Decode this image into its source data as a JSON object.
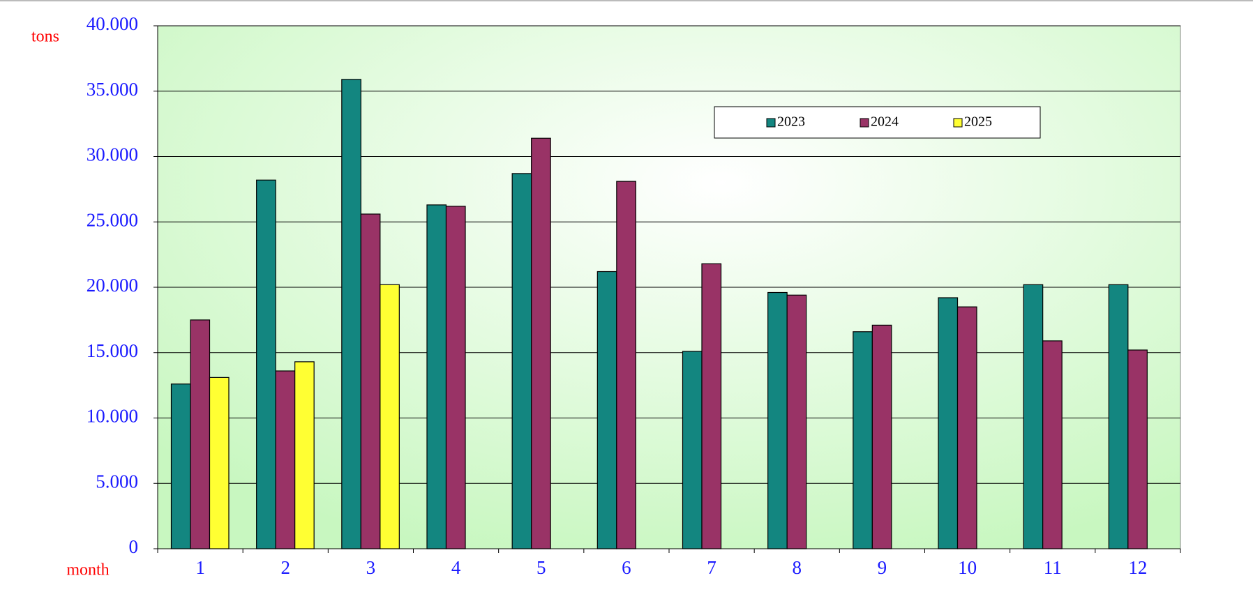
{
  "chart_data": {
    "type": "bar",
    "y_label": "tons",
    "x_label": "month",
    "categories": [
      "1",
      "2",
      "3",
      "4",
      "5",
      "6",
      "7",
      "8",
      "9",
      "10",
      "11",
      "12"
    ],
    "series": [
      {
        "name": "2023",
        "color": "#138680",
        "values": [
          12600,
          28200,
          35900,
          26300,
          28700,
          21200,
          15100,
          19600,
          16600,
          19200,
          20200,
          20200
        ]
      },
      {
        "name": "2024",
        "color": "#993366",
        "values": [
          17500,
          13600,
          25600,
          26200,
          31400,
          28100,
          21800,
          19400,
          17100,
          18500,
          15900,
          15200
        ]
      },
      {
        "name": "2025",
        "color": "#ffff33",
        "values": [
          13100,
          14300,
          20200,
          null,
          null,
          null,
          null,
          null,
          null,
          null,
          null,
          null
        ]
      }
    ],
    "ylim": [
      0,
      40000
    ],
    "yticks": [
      0,
      {
        "value": 5000,
        "label": "5.000"
      },
      {
        "value": 10000,
        "label": "10.000"
      },
      {
        "value": 15000,
        "label": "15.000"
      },
      {
        "value": 20000,
        "label": "20.000"
      },
      {
        "value": 25000,
        "label": "25.000"
      },
      {
        "value": 30000,
        "label": "30.000"
      },
      {
        "value": 35000,
        "label": "35.000"
      },
      {
        "value": 40000,
        "label": "40.000"
      }
    ],
    "grid": true
  }
}
